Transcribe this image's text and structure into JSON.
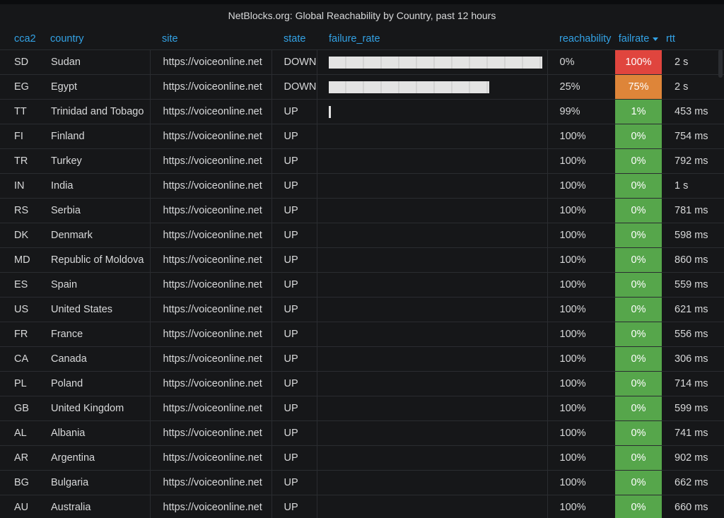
{
  "panel": {
    "title": "NetBlocks.org: Global Reachability by Country, past 12 hours"
  },
  "columns": {
    "cca2": "cca2",
    "country": "country",
    "site": "site",
    "state": "state",
    "failure_rate": "failure_rate",
    "reachability": "reachability",
    "failrate": "failrate",
    "rtt": "rtt"
  },
  "sort": {
    "column": "failrate",
    "direction": "descending",
    "icon": "caret-down-icon"
  },
  "colors": {
    "header_text": "#33a2e5",
    "fail_high": "#e0453e",
    "fail_mid": "#de8539",
    "fail_low": "#56a64b",
    "bar": "#e3e3e3",
    "background": "#161719"
  },
  "rows": [
    {
      "cca2": "SD",
      "country": "Sudan",
      "site": "https://voiceonline.net",
      "state": "DOWN",
      "failure_rate": 1.0,
      "reachability": "0%",
      "failrate": "100%",
      "failrate_level": "high",
      "rtt": "2 s"
    },
    {
      "cca2": "EG",
      "country": "Egypt",
      "site": "https://voiceonline.net",
      "state": "DOWN",
      "failure_rate": 0.75,
      "reachability": "25%",
      "failrate": "75%",
      "failrate_level": "mid",
      "rtt": "2 s"
    },
    {
      "cca2": "TT",
      "country": "Trinidad and Tobago",
      "site": "https://voiceonline.net",
      "state": "UP",
      "failure_rate": 0.01,
      "reachability": "99%",
      "failrate": "1%",
      "failrate_level": "low",
      "rtt": "453 ms"
    },
    {
      "cca2": "FI",
      "country": "Finland",
      "site": "https://voiceonline.net",
      "state": "UP",
      "failure_rate": 0,
      "reachability": "100%",
      "failrate": "0%",
      "failrate_level": "low",
      "rtt": "754 ms"
    },
    {
      "cca2": "TR",
      "country": "Turkey",
      "site": "https://voiceonline.net",
      "state": "UP",
      "failure_rate": 0,
      "reachability": "100%",
      "failrate": "0%",
      "failrate_level": "low",
      "rtt": "792 ms"
    },
    {
      "cca2": "IN",
      "country": "India",
      "site": "https://voiceonline.net",
      "state": "UP",
      "failure_rate": 0,
      "reachability": "100%",
      "failrate": "0%",
      "failrate_level": "low",
      "rtt": "1 s"
    },
    {
      "cca2": "RS",
      "country": "Serbia",
      "site": "https://voiceonline.net",
      "state": "UP",
      "failure_rate": 0,
      "reachability": "100%",
      "failrate": "0%",
      "failrate_level": "low",
      "rtt": "781 ms"
    },
    {
      "cca2": "DK",
      "country": "Denmark",
      "site": "https://voiceonline.net",
      "state": "UP",
      "failure_rate": 0,
      "reachability": "100%",
      "failrate": "0%",
      "failrate_level": "low",
      "rtt": "598 ms"
    },
    {
      "cca2": "MD",
      "country": "Republic of Moldova",
      "site": "https://voiceonline.net",
      "state": "UP",
      "failure_rate": 0,
      "reachability": "100%",
      "failrate": "0%",
      "failrate_level": "low",
      "rtt": "860 ms"
    },
    {
      "cca2": "ES",
      "country": "Spain",
      "site": "https://voiceonline.net",
      "state": "UP",
      "failure_rate": 0,
      "reachability": "100%",
      "failrate": "0%",
      "failrate_level": "low",
      "rtt": "559 ms"
    },
    {
      "cca2": "US",
      "country": "United States",
      "site": "https://voiceonline.net",
      "state": "UP",
      "failure_rate": 0,
      "reachability": "100%",
      "failrate": "0%",
      "failrate_level": "low",
      "rtt": "621 ms"
    },
    {
      "cca2": "FR",
      "country": "France",
      "site": "https://voiceonline.net",
      "state": "UP",
      "failure_rate": 0,
      "reachability": "100%",
      "failrate": "0%",
      "failrate_level": "low",
      "rtt": "556 ms"
    },
    {
      "cca2": "CA",
      "country": "Canada",
      "site": "https://voiceonline.net",
      "state": "UP",
      "failure_rate": 0,
      "reachability": "100%",
      "failrate": "0%",
      "failrate_level": "low",
      "rtt": "306 ms"
    },
    {
      "cca2": "PL",
      "country": "Poland",
      "site": "https://voiceonline.net",
      "state": "UP",
      "failure_rate": 0,
      "reachability": "100%",
      "failrate": "0%",
      "failrate_level": "low",
      "rtt": "714 ms"
    },
    {
      "cca2": "GB",
      "country": "United Kingdom",
      "site": "https://voiceonline.net",
      "state": "UP",
      "failure_rate": 0,
      "reachability": "100%",
      "failrate": "0%",
      "failrate_level": "low",
      "rtt": "599 ms"
    },
    {
      "cca2": "AL",
      "country": "Albania",
      "site": "https://voiceonline.net",
      "state": "UP",
      "failure_rate": 0,
      "reachability": "100%",
      "failrate": "0%",
      "failrate_level": "low",
      "rtt": "741 ms"
    },
    {
      "cca2": "AR",
      "country": "Argentina",
      "site": "https://voiceonline.net",
      "state": "UP",
      "failure_rate": 0,
      "reachability": "100%",
      "failrate": "0%",
      "failrate_level": "low",
      "rtt": "902 ms"
    },
    {
      "cca2": "BG",
      "country": "Bulgaria",
      "site": "https://voiceonline.net",
      "state": "UP",
      "failure_rate": 0,
      "reachability": "100%",
      "failrate": "0%",
      "failrate_level": "low",
      "rtt": "662 ms"
    },
    {
      "cca2": "AU",
      "country": "Australia",
      "site": "https://voiceonline.net",
      "state": "UP",
      "failure_rate": 0,
      "reachability": "100%",
      "failrate": "0%",
      "failrate_level": "low",
      "rtt": "660 ms"
    }
  ]
}
